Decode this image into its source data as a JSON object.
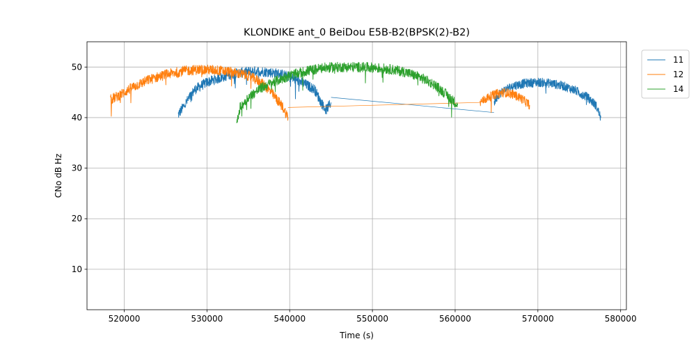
{
  "chart_data": {
    "type": "line",
    "title": "KLONDIKE ant_0 BeiDou E5B-B2(BPSK(2)-B2)",
    "xlabel": "Time (s)",
    "ylabel": "CNo dB Hz",
    "xlim": [
      515500,
      580700
    ],
    "ylim": [
      2,
      55
    ],
    "xticks": [
      520000,
      530000,
      540000,
      550000,
      560000,
      570000,
      580000
    ],
    "xtick_labels": [
      "520000",
      "530000",
      "540000",
      "550000",
      "560000",
      "570000",
      "580000"
    ],
    "yticks": [
      10,
      20,
      30,
      40,
      50
    ],
    "ytick_labels": [
      "10",
      "20",
      "30",
      "40",
      "50"
    ],
    "grid": true,
    "legend_position": "outside-top-right",
    "series": [
      {
        "name": "11",
        "color": "#1f77b4",
        "segments": [
          {
            "x": [
              526500,
              527500,
              528500,
              530000,
              531500,
              533000,
              534500,
              536000,
              537500,
              539000,
              540000,
              541000,
              542000,
              543000,
              543800,
              544400,
              545000
            ],
            "y": [
              40.5,
              43.0,
              45.5,
              47.0,
              47.8,
              48.6,
              49.0,
              49.2,
              49.0,
              48.6,
              48.0,
              47.3,
              46.5,
              45.6,
              43.0,
              41.5,
              43.0
            ],
            "noise": 1.0
          },
          {
            "x": [
              545000,
              564700
            ],
            "y": [
              44.0,
              41.0
            ],
            "noise": 0
          },
          {
            "x": [
              564700,
              565200,
              566000,
              567000,
              568500,
              570000,
              571500,
              573000,
              574500,
              576000,
              577000,
              577600
            ],
            "y": [
              43.0,
              44.5,
              45.5,
              46.3,
              46.8,
              47.0,
              46.8,
              46.3,
              45.4,
              44.0,
              42.5,
              40.0
            ],
            "noise": 0.9
          }
        ]
      },
      {
        "name": "12",
        "color": "#ff7f0e",
        "segments": [
          {
            "x": [
              518300,
              519500,
              521000,
              523000,
              525000,
              527000,
              529000,
              531000,
              533000,
              535000,
              536500,
              537500,
              538500,
              539200,
              539800
            ],
            "y": [
              43.5,
              44.5,
              46.0,
              47.5,
              48.5,
              49.2,
              49.5,
              49.4,
              49.0,
              48.3,
              47.0,
              45.5,
              43.5,
              42.0,
              40.0
            ],
            "noise": 1.0
          },
          {
            "x": [
              539800,
              563000
            ],
            "y": [
              42.0,
              43.0
            ],
            "noise": 0
          },
          {
            "x": [
              563000,
              564000,
              565000,
              566000,
              567000,
              568000,
              569000
            ],
            "y": [
              43.0,
              44.0,
              44.7,
              45.0,
              44.6,
              43.8,
              42.5
            ],
            "noise": 0.9
          }
        ]
      },
      {
        "name": "14",
        "color": "#2ca02c",
        "segments": [
          {
            "x": [
              533600,
              534000,
              535000,
              536500,
              538000,
              540000,
              542000,
              544000,
              546000,
              548000,
              550000,
              552000,
              554000,
              556000,
              557500,
              559000,
              560300
            ],
            "y": [
              38.5,
              42.0,
              44.0,
              45.8,
              47.0,
              48.3,
              49.2,
              49.8,
              50.0,
              50.0,
              49.9,
              49.6,
              49.0,
              47.8,
              46.5,
              44.5,
              42.5
            ],
            "noise": 1.0
          }
        ]
      }
    ]
  }
}
